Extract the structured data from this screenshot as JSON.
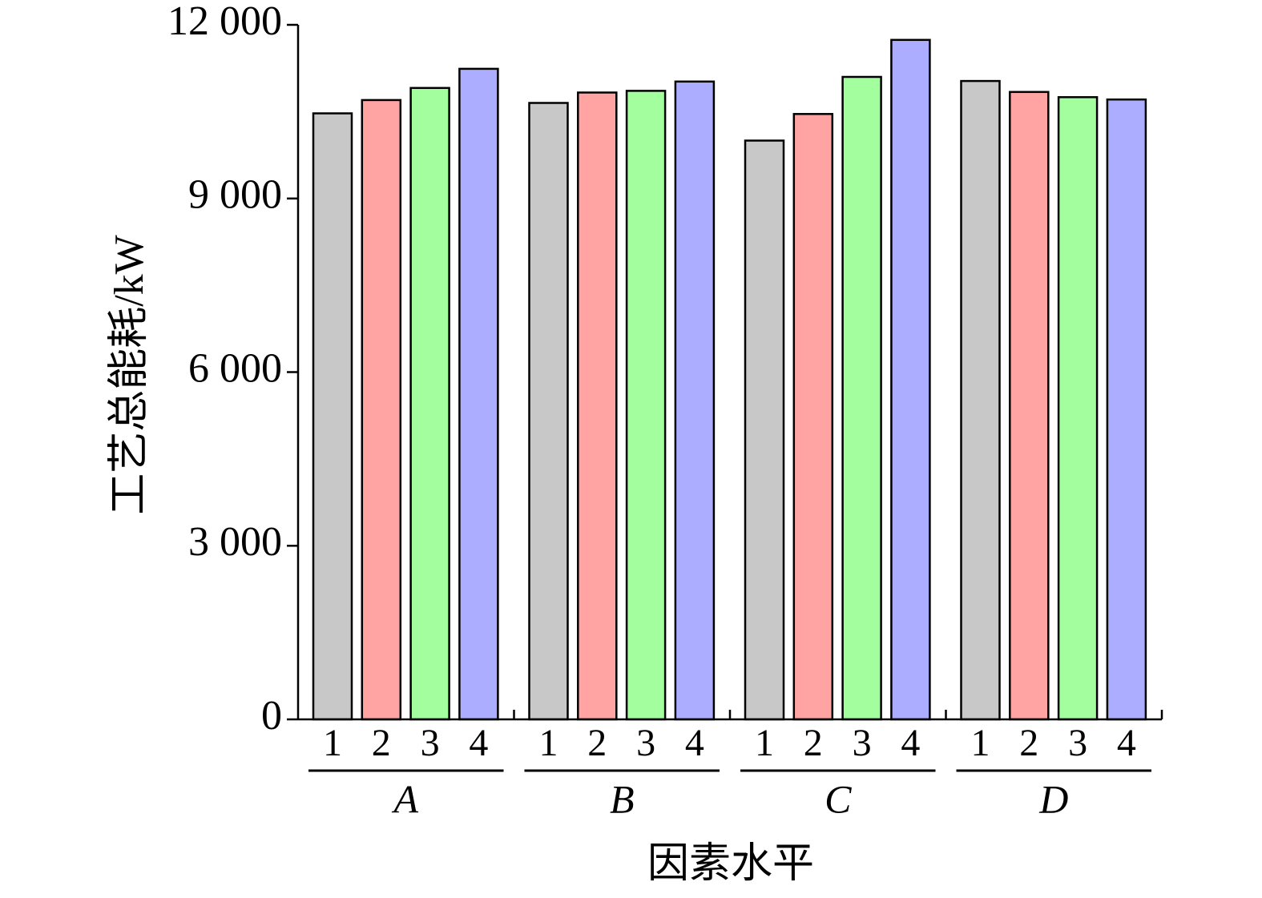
{
  "chart_data": {
    "type": "bar",
    "title": "",
    "xlabel": "因素水平",
    "ylabel": "工艺总能耗/kW",
    "ylim": [
      0,
      12000
    ],
    "yticks": [
      0,
      3000,
      6000,
      9000,
      12000
    ],
    "ytick_labels": [
      "0",
      "3 000",
      "6 000",
      "9 000",
      "12 000"
    ],
    "level_labels": [
      "1",
      "2",
      "3",
      "4"
    ],
    "level_colors": [
      "#c8c8c8",
      "#ffa3a3",
      "#a3ff9e",
      "#adadff"
    ],
    "groups": [
      {
        "label": "A",
        "values": [
          10470,
          10700,
          10910,
          11240
        ]
      },
      {
        "label": "B",
        "values": [
          10650,
          10830,
          10860,
          11020
        ]
      },
      {
        "label": "C",
        "values": [
          10000,
          10460,
          11100,
          11740
        ]
      },
      {
        "label": "D",
        "values": [
          11030,
          10840,
          10750,
          10710
        ]
      }
    ]
  }
}
